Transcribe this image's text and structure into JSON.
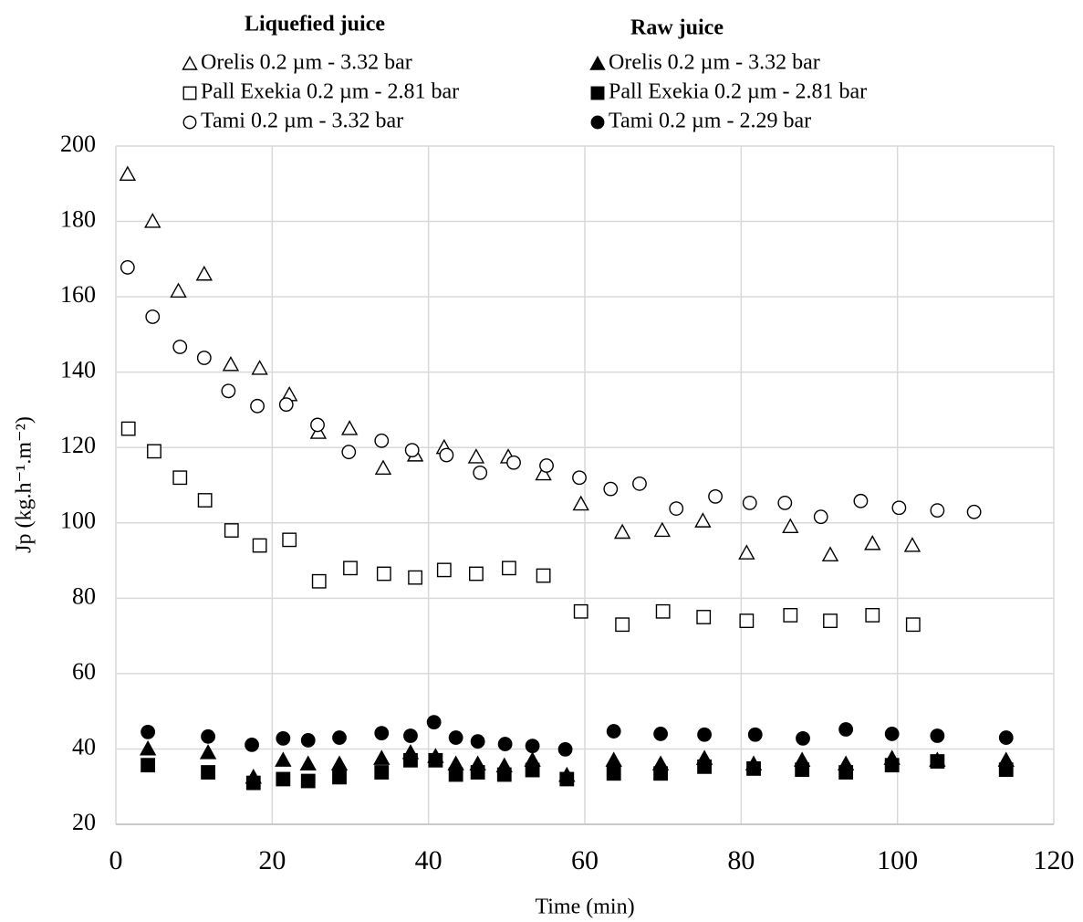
{
  "chart_data": {
    "type": "scatter",
    "x_label": "Time (min)",
    "y_label": "Jp (kg.h⁻¹.m⁻²)",
    "legend_titles": [
      "Liquefied juice",
      "Raw juice"
    ],
    "xlim": [
      0,
      120
    ],
    "xticks": [
      0,
      20,
      40,
      60,
      80,
      100,
      120
    ],
    "ylim": [
      20,
      200
    ],
    "yticks": [
      20,
      40,
      60,
      80,
      100,
      120,
      140,
      160,
      180,
      200
    ],
    "grid": true,
    "series": [
      {
        "name": "Orelis 0.2 µm - 3.32 bar",
        "marker": "triangle",
        "filled": false,
        "color": "#000000",
        "x": [
          1.5,
          4.7,
          8,
          11.3,
          14.7,
          18.4,
          22.2,
          25.9,
          29.9,
          34.2,
          38.3,
          42,
          46.1,
          50.2,
          54.7,
          59.5,
          64.8,
          69.9,
          75.1,
          80.7,
          86.3,
          91.4,
          96.8,
          101.9
        ],
        "values": [
          192.5,
          180,
          161.5,
          166,
          142,
          141,
          134,
          124,
          125,
          114.5,
          118,
          120,
          117.5,
          117.5,
          113,
          105,
          97.5,
          98,
          100.5,
          92,
          99,
          91.5,
          94.5,
          94
        ]
      },
      {
        "name": "Pall Exekia 0.2 µm - 2.81 bar",
        "marker": "square",
        "filled": false,
        "color": "#000000",
        "x": [
          1.6,
          4.9,
          8.2,
          11.4,
          14.8,
          18.4,
          22.2,
          26,
          30,
          34.3,
          38.3,
          42,
          46.1,
          50.3,
          54.7,
          59.5,
          64.8,
          70,
          75.2,
          80.7,
          86.3,
          91.4,
          96.8,
          102
        ],
        "values": [
          125,
          119,
          112,
          106,
          98,
          94,
          95.5,
          84.5,
          88,
          86.5,
          85.5,
          87.5,
          86.5,
          88,
          86,
          76.5,
          73,
          76.5,
          75,
          74,
          75.5,
          74,
          75.5,
          73
        ]
      },
      {
        "name": "Tami 0.2 µm - 3.32 bar",
        "marker": "circle",
        "filled": false,
        "color": "#000000",
        "x": [
          1.5,
          4.7,
          8.2,
          11.3,
          14.4,
          18.1,
          21.8,
          25.8,
          29.8,
          34,
          37.9,
          42.3,
          46.6,
          50.9,
          55.1,
          59.3,
          63.3,
          67,
          71.7,
          76.7,
          81.1,
          85.6,
          90.2,
          95.3,
          100.2,
          105.1,
          109.8
        ],
        "values": [
          167.8,
          154.7,
          146.7,
          143.8,
          135,
          131,
          131.4,
          126,
          118.8,
          121.8,
          119.3,
          118,
          113.3,
          116,
          115.2,
          112,
          109,
          110.4,
          103.8,
          107,
          105.3,
          105.3,
          101.6,
          105.8,
          104,
          103.3,
          102.9
        ]
      },
      {
        "name": "Orelis 0.2 µm - 3.32 bar",
        "marker": "triangle",
        "filled": true,
        "color": "#000000",
        "x": [
          4.1,
          11.8,
          17.6,
          21.4,
          24.6,
          28.6,
          34,
          37.7,
          40.9,
          43.5,
          46.3,
          49.7,
          53.3,
          57.7,
          63.7,
          69.7,
          75.3,
          81.6,
          87.8,
          93.4,
          99.3,
          105.1,
          113.9
        ],
        "values": [
          40,
          39,
          32.5,
          37,
          36,
          36,
          37.5,
          39,
          38,
          36,
          36,
          35.5,
          37,
          33,
          37,
          36,
          37.5,
          36,
          37,
          36,
          37.5,
          37,
          37
        ]
      },
      {
        "name": "Pall Exekia 0.2 µm - 2.81 bar",
        "marker": "square",
        "filled": true,
        "color": "#000000",
        "x": [
          4.1,
          11.8,
          17.6,
          21.4,
          24.6,
          28.6,
          34,
          37.7,
          40.9,
          43.5,
          46.3,
          49.7,
          53.3,
          57.7,
          63.7,
          69.7,
          75.3,
          81.6,
          87.8,
          93.4,
          99.3,
          105.1,
          113.9
        ],
        "values": [
          35.7,
          33.8,
          31,
          32,
          31.5,
          32.5,
          33.8,
          37,
          37,
          33.2,
          33.8,
          33.2,
          34.4,
          32,
          33.5,
          33.5,
          35.3,
          34.8,
          34.5,
          33.8,
          35.7,
          36.7,
          34.5
        ]
      },
      {
        "name": "Tami 0.2 µm - 2.29 bar",
        "marker": "circle",
        "filled": true,
        "color": "#000000",
        "x": [
          4.1,
          11.8,
          17.4,
          21.4,
          24.6,
          28.6,
          34,
          37.7,
          40.7,
          43.5,
          46.3,
          49.8,
          53.3,
          57.5,
          63.7,
          69.7,
          75.3,
          81.8,
          87.9,
          93.4,
          99.3,
          105.1,
          113.9
        ],
        "values": [
          44.5,
          43.3,
          41.1,
          42.8,
          42.3,
          43,
          44.2,
          43.5,
          47.1,
          43,
          42,
          41.3,
          40.8,
          39.9,
          44.7,
          44,
          43.8,
          43.8,
          42.8,
          45.2,
          44,
          43.5,
          43
        ]
      }
    ]
  }
}
